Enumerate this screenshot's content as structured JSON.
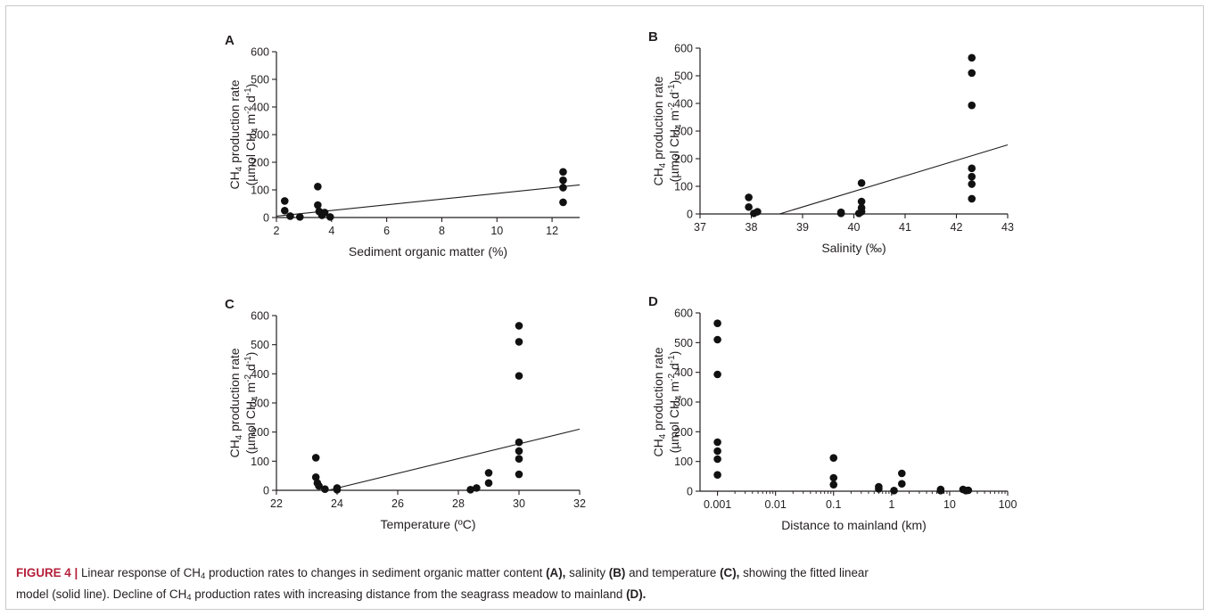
{
  "chart_data": [
    {
      "type": "scatter",
      "panel": "A",
      "xlabel": "Sediment organic matter (%)",
      "ylabel_line1": "CH4 production rate",
      "ylabel_line2": "(µmol CH4 m-2 d-1)",
      "xlim": [
        2,
        13
      ],
      "ylim": [
        0,
        600
      ],
      "xticks": [
        2,
        4,
        6,
        8,
        10,
        12
      ],
      "yticks": [
        0,
        100,
        200,
        300,
        400,
        500,
        600
      ],
      "xscale": "linear",
      "points": [
        {
          "x": 2.3,
          "y": 60
        },
        {
          "x": 2.3,
          "y": 25
        },
        {
          "x": 2.5,
          "y": 5
        },
        {
          "x": 2.85,
          "y": 2
        },
        {
          "x": 3.5,
          "y": 112
        },
        {
          "x": 3.5,
          "y": 45
        },
        {
          "x": 3.55,
          "y": 22
        },
        {
          "x": 3.65,
          "y": 8
        },
        {
          "x": 3.75,
          "y": 18
        },
        {
          "x": 3.95,
          "y": 2
        },
        {
          "x": 12.4,
          "y": 165
        },
        {
          "x": 12.4,
          "y": 135
        },
        {
          "x": 12.4,
          "y": 108
        },
        {
          "x": 12.4,
          "y": 55
        }
      ],
      "fit_line": {
        "x": [
          2,
          13
        ],
        "y": [
          5,
          118
        ]
      }
    },
    {
      "type": "scatter",
      "panel": "B",
      "xlabel": "Salinity (‰)",
      "ylabel_line1": "CH4 production rate",
      "ylabel_line2": "(µmol CH4 m-2 d-1)",
      "xlim": [
        37,
        43
      ],
      "ylim": [
        0,
        600
      ],
      "xticks": [
        37,
        38,
        39,
        40,
        41,
        42,
        43
      ],
      "yticks": [
        0,
        100,
        200,
        300,
        400,
        500,
        600
      ],
      "xscale": "linear",
      "points": [
        {
          "x": 37.95,
          "y": 60
        },
        {
          "x": 37.95,
          "y": 25
        },
        {
          "x": 38.05,
          "y": 2
        },
        {
          "x": 38.12,
          "y": 8
        },
        {
          "x": 39.75,
          "y": 2
        },
        {
          "x": 39.75,
          "y": 6
        },
        {
          "x": 40.15,
          "y": 112
        },
        {
          "x": 40.15,
          "y": 45
        },
        {
          "x": 40.15,
          "y": 22
        },
        {
          "x": 40.15,
          "y": 8
        },
        {
          "x": 40.1,
          "y": 2
        },
        {
          "x": 42.3,
          "y": 565
        },
        {
          "x": 42.3,
          "y": 510
        },
        {
          "x": 42.3,
          "y": 393
        },
        {
          "x": 42.3,
          "y": 165
        },
        {
          "x": 42.3,
          "y": 135
        },
        {
          "x": 42.3,
          "y": 108
        },
        {
          "x": 42.3,
          "y": 55
        }
      ],
      "fit_line": {
        "x": [
          38.55,
          43
        ],
        "y": [
          0,
          250
        ]
      }
    },
    {
      "type": "scatter",
      "panel": "C",
      "xlabel": "Temperature (ºC)",
      "ylabel_line1": "CH4 production rate",
      "ylabel_line2": "(µmol CH4 m-2 d-1)",
      "xlim": [
        22,
        32
      ],
      "ylim": [
        0,
        600
      ],
      "xticks": [
        22,
        24,
        26,
        28,
        30,
        32
      ],
      "yticks": [
        0,
        100,
        200,
        300,
        400,
        500,
        600
      ],
      "xscale": "linear",
      "points": [
        {
          "x": 23.3,
          "y": 112
        },
        {
          "x": 23.3,
          "y": 45
        },
        {
          "x": 23.35,
          "y": 25
        },
        {
          "x": 23.4,
          "y": 15
        },
        {
          "x": 23.6,
          "y": 4
        },
        {
          "x": 24.0,
          "y": 8
        },
        {
          "x": 24.0,
          "y": 2
        },
        {
          "x": 28.4,
          "y": 2
        },
        {
          "x": 28.6,
          "y": 8
        },
        {
          "x": 29.0,
          "y": 60
        },
        {
          "x": 29.0,
          "y": 25
        },
        {
          "x": 30.0,
          "y": 565
        },
        {
          "x": 30.0,
          "y": 510
        },
        {
          "x": 30.0,
          "y": 393
        },
        {
          "x": 30.0,
          "y": 165
        },
        {
          "x": 30.0,
          "y": 135
        },
        {
          "x": 30.0,
          "y": 108
        },
        {
          "x": 30.0,
          "y": 55
        }
      ],
      "fit_line": {
        "x": [
          23.7,
          32
        ],
        "y": [
          0,
          210
        ]
      }
    },
    {
      "type": "scatter",
      "panel": "D",
      "xlabel": "Distance to mainland (km)",
      "ylabel_line1": "CH4 production rate",
      "ylabel_line2": "(µmol CH4 m-2 d-1)",
      "xlim": [
        0.0005,
        100
      ],
      "ylim": [
        0,
        600
      ],
      "xticks": [
        0.001,
        0.01,
        0.1,
        1,
        10,
        100
      ],
      "xticklabels": [
        "0.001",
        "0.01",
        "0.1",
        "1",
        "10",
        "100"
      ],
      "yticks": [
        0,
        100,
        200,
        300,
        400,
        500,
        600
      ],
      "xscale": "log",
      "points": [
        {
          "x": 0.001,
          "y": 565
        },
        {
          "x": 0.001,
          "y": 510
        },
        {
          "x": 0.001,
          "y": 393
        },
        {
          "x": 0.001,
          "y": 165
        },
        {
          "x": 0.001,
          "y": 135
        },
        {
          "x": 0.001,
          "y": 108
        },
        {
          "x": 0.001,
          "y": 55
        },
        {
          "x": 0.1,
          "y": 112
        },
        {
          "x": 0.1,
          "y": 45
        },
        {
          "x": 0.1,
          "y": 22
        },
        {
          "x": 0.6,
          "y": 15
        },
        {
          "x": 0.6,
          "y": 8
        },
        {
          "x": 1.1,
          "y": 2
        },
        {
          "x": 1.5,
          "y": 60
        },
        {
          "x": 1.5,
          "y": 25
        },
        {
          "x": 7,
          "y": 6
        },
        {
          "x": 7,
          "y": 2
        },
        {
          "x": 17,
          "y": 6
        },
        {
          "x": 19,
          "y": 2
        },
        {
          "x": 21,
          "y": 3
        }
      ]
    }
  ],
  "caption": {
    "label": "FIGURE 4 |",
    "line1_parts": [
      " Linear response of CH",
      "4",
      " production rates to changes in sediment organic matter content ",
      "(A),",
      " salinity ",
      "(B)",
      " and temperature ",
      "(C),",
      " showing the fitted linear"
    ],
    "line2_parts": [
      "model (solid line). Decline of CH",
      "4",
      " production rates with increasing distance from the seagrass meadow to mainland ",
      "(D)."
    ]
  },
  "colors": {
    "ink": "#231f20",
    "caption_label": "#b51f3a",
    "frame": "#c9c9c9"
  }
}
